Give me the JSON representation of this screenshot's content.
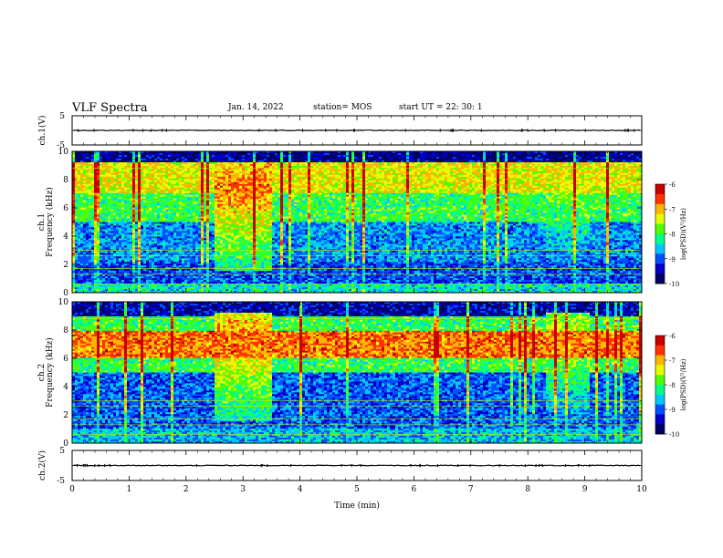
{
  "header": {
    "title": "VLF Spectra",
    "date": "Jan. 14, 2022",
    "station": "station= MOS",
    "start_ut": "start UT =  22: 30: 1"
  },
  "colors": {
    "colormap": [
      "#000060",
      "#0000c8",
      "#0050ff",
      "#00c8ff",
      "#00ff8c",
      "#50ff00",
      "#e6ff00",
      "#ffb400",
      "#ff3200",
      "#c80000"
    ],
    "trace": "#000000",
    "background": "#ffffff"
  },
  "chart_data": [
    {
      "type": "line",
      "name": "waveform-ch1",
      "ylabel": "ch.1(V)",
      "ylim": [
        -5,
        5
      ],
      "yticks": [
        "5",
        "-5"
      ],
      "xlim": [
        0,
        10
      ],
      "description_values": "near-constant trace at about 0 V"
    },
    {
      "type": "heatmap",
      "name": "spectrogram-ch1",
      "ylabel_lines": [
        "ch.1",
        "Frequency (kHz)"
      ],
      "ylim": [
        0,
        10
      ],
      "yticks": [
        "0",
        "2",
        "4",
        "6",
        "8",
        "10"
      ],
      "xlim": [
        0,
        10
      ],
      "colorbar": {
        "label": "log(PSD)(V²/Hz)",
        "range": [
          -10,
          -6
        ],
        "ticks": [
          "-6",
          "-7",
          "-8",
          "-9",
          "-10"
        ]
      },
      "bands_khz": [
        {
          "from": 0.0,
          "to": 0.7,
          "level": -8.4
        },
        {
          "from": 0.7,
          "to": 2.2,
          "level": -9.1
        },
        {
          "from": 2.2,
          "to": 5.0,
          "level": -8.8
        },
        {
          "from": 5.0,
          "to": 7.0,
          "level": -8.0
        },
        {
          "from": 7.0,
          "to": 9.2,
          "level": -7.3
        },
        {
          "from": 9.2,
          "to": 10.0,
          "level": -9.6
        }
      ],
      "bursts_min": [
        [
          2.5,
          3.5,
          -6.8
        ],
        [
          8.3,
          9.1,
          -7.6
        ]
      ]
    },
    {
      "type": "heatmap",
      "name": "spectrogram-ch2",
      "ylabel_lines": [
        "ch.2",
        "Frequency (kHz)"
      ],
      "ylim": [
        0,
        10
      ],
      "yticks": [
        "0",
        "2",
        "4",
        "6",
        "8",
        "10"
      ],
      "xlim": [
        0,
        10
      ],
      "colorbar": {
        "label": "log(PSD)(V²/Hz)",
        "range": [
          -10,
          -6
        ],
        "ticks": [
          "-6",
          "-7",
          "-8",
          "-9",
          "-10"
        ]
      },
      "bands_khz": [
        {
          "from": 0.0,
          "to": 1.0,
          "level": -8.6
        },
        {
          "from": 1.0,
          "to": 5.0,
          "level": -9.0
        },
        {
          "from": 5.0,
          "to": 6.0,
          "level": -8.0
        },
        {
          "from": 6.0,
          "to": 8.0,
          "level": -6.8
        },
        {
          "from": 8.0,
          "to": 9.0,
          "level": -8.0
        },
        {
          "from": 9.0,
          "to": 10.0,
          "level": -9.5
        }
      ],
      "bursts_min": [
        [
          2.5,
          3.5,
          -6.9
        ],
        [
          8.3,
          9.1,
          -7.4
        ]
      ]
    },
    {
      "type": "line",
      "name": "waveform-ch2",
      "ylabel": "ch.2(V)",
      "ylim": [
        -5,
        5
      ],
      "yticks": [
        "5",
        "-5"
      ],
      "xlim": [
        0,
        10
      ],
      "description_values": "near-constant trace at about 0 V"
    }
  ],
  "xaxis": {
    "label": "Time (min)",
    "ticks": [
      "0",
      "1",
      "2",
      "3",
      "4",
      "5",
      "6",
      "7",
      "8",
      "9",
      "10"
    ]
  }
}
